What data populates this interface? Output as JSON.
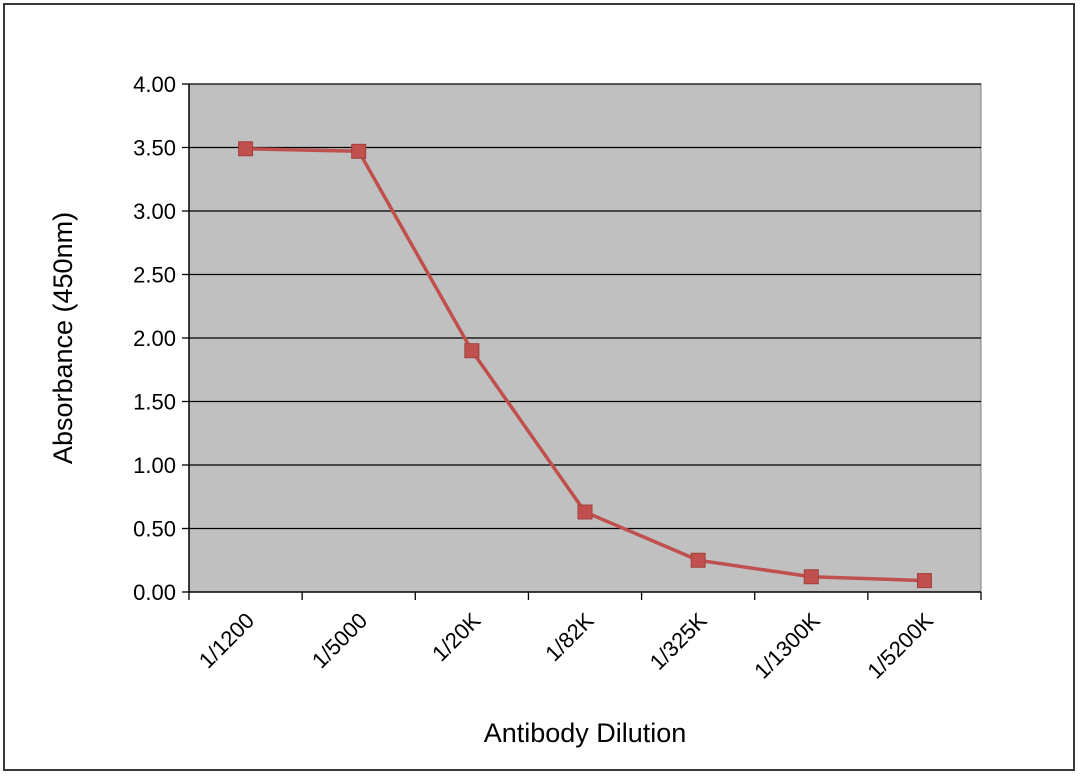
{
  "chart_data": {
    "type": "line",
    "title": "",
    "xlabel": "Antibody Dilution",
    "ylabel": "Absorbance (450nm)",
    "categories": [
      "1/1200",
      "1/5000",
      "1/20K",
      "1/82K",
      "1/325K",
      "1/1300K",
      "1/5200K"
    ],
    "series": [
      {
        "values": [
          3.49,
          3.47,
          1.9,
          0.63,
          0.25,
          0.12,
          0.09
        ],
        "color": "#c0504d"
      }
    ],
    "ylim": [
      0,
      4
    ],
    "yticks": [
      "0.00",
      "0.50",
      "1.00",
      "1.50",
      "2.00",
      "2.50",
      "3.00",
      "3.50",
      "4.00"
    ],
    "grid": true,
    "plot_background": "#c0c0c0",
    "legend": "none"
  }
}
